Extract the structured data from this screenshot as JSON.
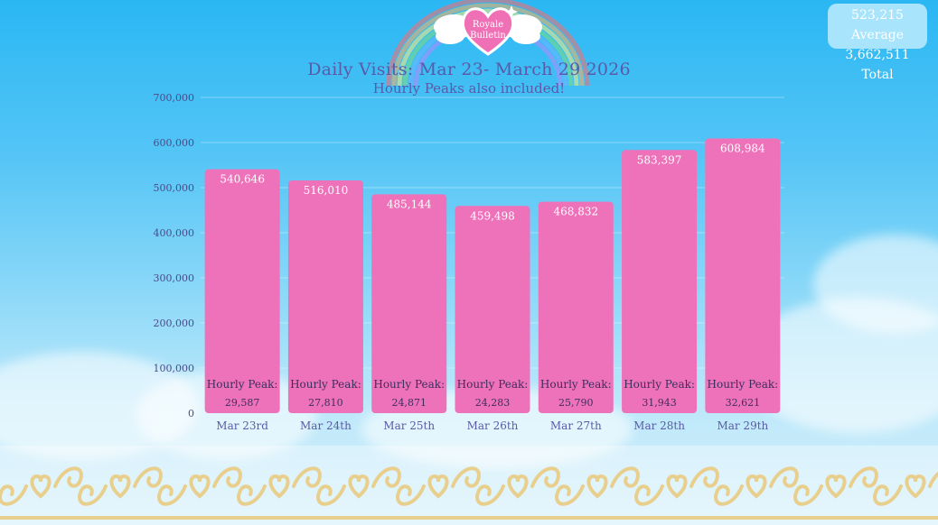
{
  "badge": {
    "line1": "Royale",
    "line2": "Bulletin"
  },
  "stats": {
    "average": "523,215 Average",
    "total": "3,662,511 Total"
  },
  "colors": {
    "bar": "#ee72b9",
    "title": "#5a5aa8",
    "tick": "#4a4a8a",
    "gold": "#e8cf8e"
  },
  "chart_data": {
    "type": "bar",
    "title": "Daily Visits: Mar 23- March 29 2026",
    "subtitle": "Hourly Peaks  also included!",
    "categories": [
      "Mar 23rd",
      "Mar 24th",
      "Mar 25th",
      "Mar 26th",
      "Mar 27th",
      "Mar 28th",
      "Mar 29th"
    ],
    "values": [
      540646,
      516010,
      485144,
      459498,
      468832,
      583397,
      608984
    ],
    "value_labels": [
      "540,646",
      "516,010",
      "485,144",
      "459,498",
      "468,832",
      "583,397",
      "608,984"
    ],
    "peak_label": "Hourly Peak:",
    "hourly_peaks": [
      "29,587",
      "27,810",
      "24,871",
      "24,283",
      "25,790",
      "31,943",
      "32,621"
    ],
    "ylim": [
      0,
      700000
    ],
    "yticks": [
      0,
      100000,
      200000,
      300000,
      400000,
      500000,
      600000,
      700000
    ],
    "ytick_labels": [
      "0",
      "100,000",
      "200,000",
      "300,000",
      "400,000",
      "500,000",
      "600,000",
      "700,000"
    ],
    "grid": true
  }
}
